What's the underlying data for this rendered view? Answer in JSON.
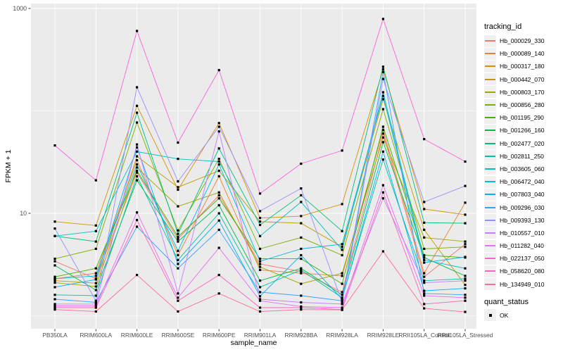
{
  "chart_data": {
    "type": "line",
    "title": "",
    "xlabel": "sample_name",
    "ylabel": "FPKM + 1",
    "y_scale": "log10",
    "ylim": [
      1,
      1000
    ],
    "y_major_ticks": [
      {
        "label": "1000",
        "value": 1000
      },
      {
        "label": "10",
        "value": 10
      }
    ],
    "y_minor_gridlines": [
      100,
      1
    ],
    "grid": true,
    "legend_position": "right",
    "panel_bg": "#EBEBEB",
    "grid_color": "#FFFFFF",
    "tick_color": "#333333",
    "tick_label_color": "#4D4D4D",
    "point_color": "#000000",
    "point_shape": "square",
    "categories": [
      "PB350LA",
      "RRIM600LA",
      "RRIM600LE",
      "RRIM600SE",
      "RRIM600PE",
      "RRIM901LA",
      "RRIM928BA",
      "RRIM928LA",
      "RRIM928LE",
      "RRII105LA_Control",
      "RRII105LA_Stressed"
    ],
    "series": [
      {
        "name": "Hb_000029_330",
        "color": "#F8766D",
        "values": [
          3.4,
          2.3,
          25,
          5.6,
          15,
          3.2,
          2.7,
          1.7,
          60,
          2.4,
          5.0
        ]
      },
      {
        "name": "Hb_000089_140",
        "color": "#EA8331",
        "values": [
          2.3,
          2.6,
          33,
          3.9,
          23,
          2.8,
          2.6,
          2.45,
          65,
          2.6,
          12.7
        ]
      },
      {
        "name": "Hb_000317_180",
        "color": "#D89000",
        "values": [
          8.3,
          7.6,
          112,
          17,
          76,
          9.0,
          9.4,
          12.3,
          255,
          11,
          9.7
        ]
      },
      {
        "name": "Hb_000442_070",
        "color": "#C09B00",
        "values": [
          2.2,
          2.08,
          36,
          18,
          26,
          8.3,
          8.0,
          4.7,
          130,
          6.9,
          2.0
        ]
      },
      {
        "name": "Hb_000803_170",
        "color": "#A3A500",
        "values": [
          2.1,
          1.93,
          28,
          11.7,
          16,
          3.0,
          2.05,
          2.6,
          55,
          5.8,
          5.3
        ]
      },
      {
        "name": "Hb_000856_280",
        "color": "#7CAE00",
        "values": [
          3.6,
          4.5,
          77,
          6.8,
          34,
          4.5,
          5.8,
          3.9,
          104,
          4.5,
          4.7
        ]
      },
      {
        "name": "Hb_001195_290",
        "color": "#39B600",
        "values": [
          2.4,
          2.9,
          26,
          5.9,
          14,
          3.6,
          3.6,
          2.05,
          70,
          3.9,
          3.7
        ]
      },
      {
        "name": "Hb_001266_160",
        "color": "#00BB4E",
        "values": [
          3.1,
          1.78,
          21,
          5.3,
          12,
          2.2,
          2.9,
          1.6,
          49.5,
          3.7,
          2.45
        ]
      },
      {
        "name": "Hb_002477_020",
        "color": "#00BF7D",
        "values": [
          6.0,
          5.3,
          96,
          6.3,
          43,
          7.7,
          15,
          6.7,
          270,
          8.1,
          8.0
        ]
      },
      {
        "name": "Hb_002811_250",
        "color": "#00C1A3",
        "values": [
          1.6,
          1.57,
          23,
          3.5,
          10,
          1.9,
          2.8,
          1.5,
          33.5,
          2.2,
          2.3
        ]
      },
      {
        "name": "Hb_003605_060",
        "color": "#00BFC4",
        "values": [
          6.0,
          6.7,
          40,
          34,
          32,
          6.0,
          12.9,
          4.4,
          152,
          3.5,
          2.9
        ]
      },
      {
        "name": "Hb_006472_040",
        "color": "#00BAE0",
        "values": [
          2.3,
          2.45,
          30,
          4.3,
          30,
          3.4,
          4.5,
          5.0,
          140,
          3.3,
          3.75
        ]
      },
      {
        "name": "Hb_007803_040",
        "color": "#00B0F6",
        "values": [
          1.9,
          2.26,
          44,
          3.2,
          8.5,
          1.55,
          3.9,
          1.45,
          40,
          1.75,
          1.85
        ]
      },
      {
        "name": "Hb_009296_030",
        "color": "#35A2FF",
        "values": [
          1.45,
          1.35,
          7.4,
          2.9,
          6.9,
          1.7,
          1.57,
          1.4,
          240,
          1.65,
          1.6
        ]
      },
      {
        "name": "Hb_009393_130",
        "color": "#9590FF",
        "values": [
          7.1,
          1.4,
          170,
          20.5,
          70,
          10.5,
          17.5,
          1.35,
          205,
          12.9,
          18.5
        ]
      },
      {
        "name": "Hb_010557_010",
        "color": "#C77CFF",
        "values": [
          1.3,
          1.3,
          47,
          1.65,
          63,
          1.45,
          1.35,
          1.3,
          14,
          2.1,
          2.2
        ]
      },
      {
        "name": "Hb_011282_040",
        "color": "#E76BF3",
        "values": [
          1.25,
          1.25,
          10.2,
          1.5,
          4.6,
          1.4,
          1.23,
          1.2,
          18.8,
          1.57,
          1.5
        ]
      },
      {
        "name": "Hb_022137_050",
        "color": "#FA62DB",
        "values": [
          46,
          21,
          603,
          49,
          250,
          15.6,
          30.5,
          41,
          790,
          53,
          32
        ]
      },
      {
        "name": "Hb_058620_080",
        "color": "#FF62BC",
        "values": [
          1.2,
          1.2,
          8.6,
          1.4,
          2.5,
          1.2,
          1.2,
          1.15,
          16,
          1.3,
          1.4
        ]
      },
      {
        "name": "Hb_134949_010",
        "color": "#FF6A98",
        "values": [
          1.15,
          1.1,
          2.5,
          1.1,
          1.65,
          1.1,
          1.15,
          1.14,
          4.25,
          1.18,
          1.09
        ]
      }
    ],
    "legend": {
      "tracking_title": "tracking_id",
      "quant_title": "quant_status",
      "quant_items": [
        {
          "label": "OK",
          "marker": "black-square"
        }
      ]
    }
  }
}
